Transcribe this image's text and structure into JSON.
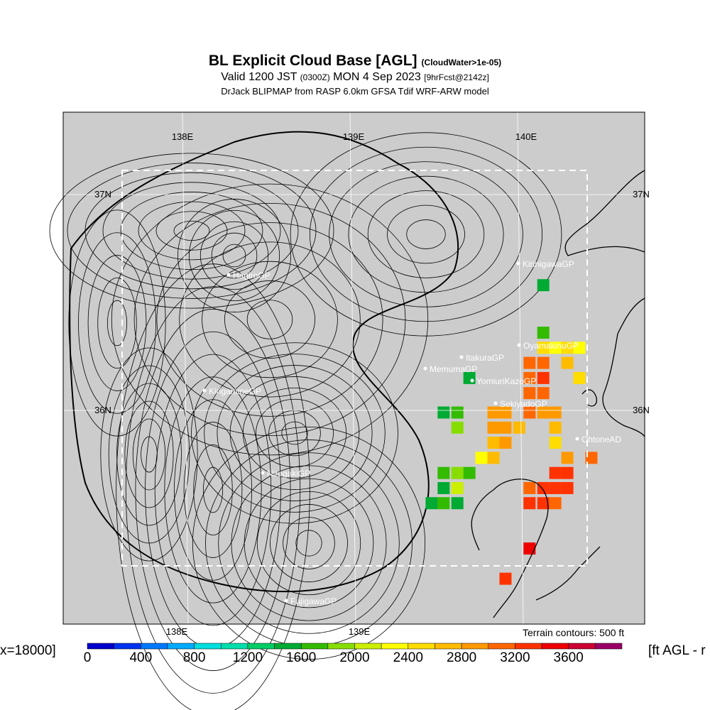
{
  "header": {
    "title": "BL Explicit Cloud Base [AGL]",
    "title_note": "(CloudWater>1e-05)",
    "valid": "Valid 1200 JST",
    "valid_utc": "(0300Z)",
    "valid_date": "MON 4 Sep 2023",
    "forecast": "[9hrFcst@2142z]",
    "model": "DrJack BLIPMAP from RASP 6.0km GFSA Tdif WRF-ARW model"
  },
  "map": {
    "lon_labels_top": [
      "138E",
      "139E",
      "140E"
    ],
    "lon_labels_bottom": [
      "138E",
      "139E"
    ],
    "lat_labels_left": [
      "37N",
      "36N"
    ],
    "lat_labels_right": [
      "37N",
      "36N"
    ],
    "sites": [
      {
        "name": "KirinigawaGP"
      },
      {
        "name": "HagiroGP"
      },
      {
        "name": "OyamakinuGP"
      },
      {
        "name": "ItakuraGP"
      },
      {
        "name": "MemumaGP"
      },
      {
        "name": "YomiuriKazoGP"
      },
      {
        "name": "KirigamineGP"
      },
      {
        "name": "SekiyadoGP"
      },
      {
        "name": "OhtoneAD"
      },
      {
        "name": "NiragakiGP"
      },
      {
        "name": "FujigawaGP"
      }
    ],
    "terrain_note": "Terrain contours: 500 ft",
    "colors": {
      "background": "#cccccc",
      "frame": "#000000",
      "dashed_box": "#ffffff"
    }
  },
  "colorbar": {
    "left_label": "x=18000]",
    "right_label": "[ft AGL - r",
    "tick_labels": [
      "0",
      "400",
      "800",
      "1200",
      "1600",
      "2000",
      "2400",
      "2800",
      "3200",
      "3600"
    ],
    "tick_values": [
      0,
      400,
      800,
      1200,
      1600,
      2000,
      2400,
      2800,
      3200,
      3600
    ],
    "min": 0,
    "max": 3800,
    "step": 200,
    "colors": [
      "#0000cc",
      "#0033ee",
      "#0077ff",
      "#00aaff",
      "#00dddd",
      "#00ddaa",
      "#00cc66",
      "#00aa33",
      "#33bb00",
      "#88dd00",
      "#ccee00",
      "#ffff00",
      "#ffdd00",
      "#ffbb00",
      "#ff9900",
      "#ff6600",
      "#ff3300",
      "#ee0000",
      "#cc0033",
      "#990066"
    ]
  },
  "chart_data": {
    "type": "heatmap",
    "title": "BL Explicit Cloud Base [AGL]",
    "subtitle": "Valid 1200 JST (0300Z) MON 4 Sep 2023 [9hrFcst@2142z]",
    "units": "ft AGL",
    "grid": true,
    "x_axis": {
      "labels": [
        "138E",
        "139E",
        "140E"
      ],
      "values": [
        138,
        139,
        140
      ]
    },
    "y_axis": {
      "labels": [
        "37N",
        "36N"
      ],
      "values": [
        37,
        36
      ]
    },
    "cells": [
      {
        "lon": 140.1,
        "lat": 36.58,
        "value": 1400
      },
      {
        "lon": 140.1,
        "lat": 36.36,
        "value": 1600
      },
      {
        "lon": 140.1,
        "lat": 36.29,
        "value": 2400
      },
      {
        "lon": 140.17,
        "lat": 36.29,
        "value": 2200
      },
      {
        "lon": 140.24,
        "lat": 36.29,
        "value": 2500
      },
      {
        "lon": 140.31,
        "lat": 36.29,
        "value": 2300
      },
      {
        "lon": 140.02,
        "lat": 36.22,
        "value": 3000
      },
      {
        "lon": 140.1,
        "lat": 36.22,
        "value": 3100
      },
      {
        "lon": 140.24,
        "lat": 36.22,
        "value": 2600
      },
      {
        "lon": 139.67,
        "lat": 36.15,
        "value": 1400
      },
      {
        "lon": 140.02,
        "lat": 36.15,
        "value": 3100
      },
      {
        "lon": 140.1,
        "lat": 36.15,
        "value": 3200
      },
      {
        "lon": 140.31,
        "lat": 36.15,
        "value": 2400
      },
      {
        "lon": 140.02,
        "lat": 36.08,
        "value": 3000
      },
      {
        "lon": 140.1,
        "lat": 36.08,
        "value": 3100
      },
      {
        "lon": 139.52,
        "lat": 35.99,
        "value": 1500
      },
      {
        "lon": 139.6,
        "lat": 35.99,
        "value": 1700
      },
      {
        "lon": 139.81,
        "lat": 35.99,
        "value": 2800
      },
      {
        "lon": 139.88,
        "lat": 35.99,
        "value": 2900
      },
      {
        "lon": 140.02,
        "lat": 35.99,
        "value": 3000
      },
      {
        "lon": 140.1,
        "lat": 35.99,
        "value": 2900
      },
      {
        "lon": 140.17,
        "lat": 35.99,
        "value": 2800
      },
      {
        "lon": 139.6,
        "lat": 35.92,
        "value": 1800
      },
      {
        "lon": 139.81,
        "lat": 35.92,
        "value": 2900
      },
      {
        "lon": 139.88,
        "lat": 35.92,
        "value": 2800
      },
      {
        "lon": 139.96,
        "lat": 35.92,
        "value": 2700
      },
      {
        "lon": 140.17,
        "lat": 35.92,
        "value": 2600
      },
      {
        "lon": 139.81,
        "lat": 35.85,
        "value": 2700
      },
      {
        "lon": 139.88,
        "lat": 35.85,
        "value": 2900
      },
      {
        "lon": 140.17,
        "lat": 35.85,
        "value": 2500
      },
      {
        "lon": 139.74,
        "lat": 35.78,
        "value": 2200
      },
      {
        "lon": 139.81,
        "lat": 35.78,
        "value": 2600
      },
      {
        "lon": 140.24,
        "lat": 35.78,
        "value": 2900
      },
      {
        "lon": 140.38,
        "lat": 35.78,
        "value": 3000
      },
      {
        "lon": 139.52,
        "lat": 35.71,
        "value": 1600
      },
      {
        "lon": 139.6,
        "lat": 35.71,
        "value": 1900
      },
      {
        "lon": 139.67,
        "lat": 35.71,
        "value": 1700
      },
      {
        "lon": 140.17,
        "lat": 35.71,
        "value": 3200
      },
      {
        "lon": 140.24,
        "lat": 35.71,
        "value": 3300
      },
      {
        "lon": 139.52,
        "lat": 35.64,
        "value": 1500
      },
      {
        "lon": 139.6,
        "lat": 35.64,
        "value": 2000
      },
      {
        "lon": 140.02,
        "lat": 35.64,
        "value": 3100
      },
      {
        "lon": 140.1,
        "lat": 35.64,
        "value": 3200
      },
      {
        "lon": 140.17,
        "lat": 35.64,
        "value": 3300
      },
      {
        "lon": 140.24,
        "lat": 35.64,
        "value": 3200
      },
      {
        "lon": 139.45,
        "lat": 35.57,
        "value": 1400
      },
      {
        "lon": 139.52,
        "lat": 35.57,
        "value": 1700
      },
      {
        "lon": 139.6,
        "lat": 35.57,
        "value": 1500
      },
      {
        "lon": 140.02,
        "lat": 35.57,
        "value": 3300
      },
      {
        "lon": 140.1,
        "lat": 35.57,
        "value": 3200
      },
      {
        "lon": 140.17,
        "lat": 35.57,
        "value": 3100
      },
      {
        "lon": 140.02,
        "lat": 35.36,
        "value": 3400
      },
      {
        "lon": 139.88,
        "lat": 35.22,
        "value": 3200
      }
    ]
  }
}
